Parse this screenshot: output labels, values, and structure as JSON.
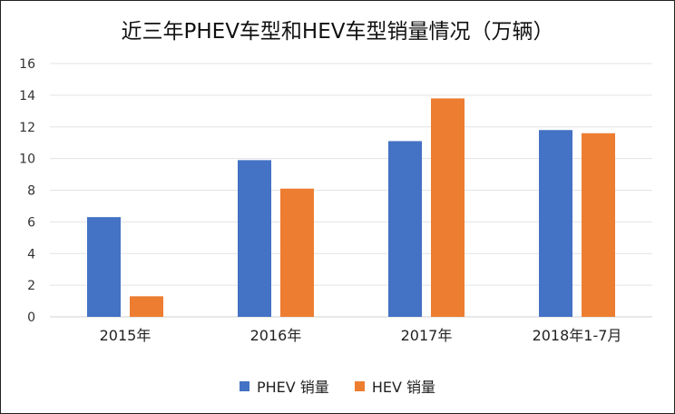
{
  "chart_data": {
    "type": "bar",
    "title": "近三年PHEV车型和HEV车型销量情况（万辆）",
    "categories": [
      "2015年",
      "2016年",
      "2017年",
      "2018年1-7月"
    ],
    "series": [
      {
        "name": "PHEV 销量",
        "values": [
          6.3,
          9.9,
          11.1,
          11.8
        ],
        "color": "#4472C4"
      },
      {
        "name": "HEV 销量",
        "values": [
          1.3,
          8.1,
          13.8,
          11.6
        ],
        "color": "#ED7D31"
      }
    ],
    "ylim": [
      0,
      16
    ],
    "yticks": [
      0,
      2,
      4,
      6,
      8,
      10,
      12,
      14,
      16
    ],
    "grid": true,
    "legend": "bottom"
  }
}
